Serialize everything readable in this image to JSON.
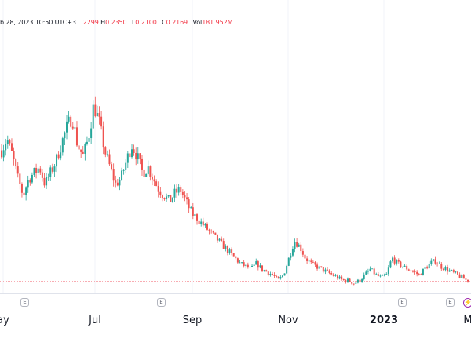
{
  "legend": {
    "date": "b 28, 2023 10:50 UTC+3",
    "o_value": ".2299",
    "h_label": "H",
    "h_value": "0.2350",
    "l_label": "L",
    "l_value": "0.2100",
    "c_label": "C",
    "c_value": "0.2169",
    "vol_label": "Vol",
    "vol_value": "181.952M"
  },
  "x_axis": {
    "labels": [
      "ay",
      "Jul",
      "Sep",
      "Nov",
      "2023",
      "M"
    ]
  },
  "earnings_marker": "E",
  "colors": {
    "up": "#26a69a",
    "down": "#ef5350",
    "grid": "#f0f3fa",
    "axis_line": "#e0e3eb",
    "price_line": "#f7a1a8",
    "text": "#131722",
    "marker_border": "#b2b5be",
    "flash": "#9c27b0"
  },
  "icons": {
    "earnings": "earnings-marker-icon",
    "split": "lightning-icon"
  },
  "chart_data": {
    "type": "candlestick",
    "title": "",
    "xlabel": "",
    "ylabel": "",
    "x_ticks": [
      "ay",
      "Jul",
      "Sep",
      "Nov",
      "2023",
      "M"
    ],
    "series": [
      {
        "values": [
          0.68,
          0.72,
          0.66,
          0.58,
          0.52,
          0.58,
          0.6,
          0.62,
          0.56,
          0.6,
          0.64,
          0.7,
          0.76,
          0.8,
          0.7,
          0.66,
          0.72,
          0.84,
          0.78,
          0.68,
          0.62,
          0.56,
          0.58,
          0.64,
          0.7,
          0.66,
          0.6,
          0.62,
          0.58,
          0.54,
          0.52,
          0.5,
          0.53,
          0.54,
          0.5,
          0.46,
          0.44,
          0.42,
          0.4,
          0.38,
          0.36,
          0.34,
          0.32,
          0.3,
          0.28,
          0.27,
          0.26,
          0.28,
          0.26,
          0.25,
          0.24,
          0.22,
          0.24,
          0.3,
          0.36,
          0.34,
          0.3,
          0.28,
          0.27,
          0.26,
          0.25,
          0.24,
          0.23,
          0.22,
          0.22,
          0.21,
          0.22,
          0.24,
          0.26,
          0.24,
          0.23,
          0.24,
          0.3,
          0.28,
          0.27,
          0.26,
          0.25,
          0.24,
          0.26,
          0.28,
          0.29,
          0.27,
          0.26,
          0.25,
          0.24,
          0.23,
          0.2169
        ]
      }
    ],
    "grid": true,
    "reference_line": 0.2169
  }
}
